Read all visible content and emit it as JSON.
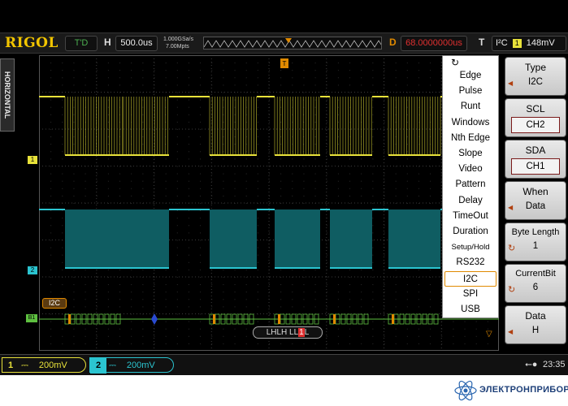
{
  "brand": "RIGOL",
  "top": {
    "status": "T'D",
    "h_label": "H",
    "timebase": "500.0us",
    "sample_rate": "1.000GSa/s",
    "memory_depth": "7.00Mpts",
    "delay_label": "D",
    "delay_value": "68.0000000us",
    "trigger_label": "T",
    "trigger_source": "I²C",
    "trigger_channel": "1",
    "trigger_level": "148mV"
  },
  "left_tab": "HORIZONTAL",
  "channel_markers": {
    "ch1": "1",
    "ch2": "2",
    "bus": "B1"
  },
  "bus_label": "I2C",
  "bus_decode": {
    "prefix": "LHLH LL",
    "highlight": "1",
    "suffix": "L"
  },
  "trigger_menu": {
    "items": [
      "Edge",
      "Pulse",
      "Runt",
      "Windows",
      "Nth Edge",
      "Slope",
      "Video",
      "Pattern",
      "Delay",
      "TimeOut",
      "Duration",
      "Setup/Hold",
      "RS232",
      "I2C",
      "SPI",
      "USB"
    ],
    "selected_index": 13
  },
  "right_panel": {
    "type": {
      "title": "Type",
      "value": "I2C"
    },
    "scl": {
      "title": "SCL",
      "value": "CH2"
    },
    "sda": {
      "title": "SDA",
      "value": "CH1"
    },
    "when": {
      "title": "When",
      "value": "Data"
    },
    "byte_length": {
      "title": "Byte Length",
      "value": "1"
    },
    "current_bit": {
      "title": "CurrentBit",
      "value": "6"
    },
    "data": {
      "title": "Data",
      "value": "H"
    }
  },
  "bottom": {
    "ch1_num": "1",
    "ch1_coupling": "⎓",
    "ch1_scale": "200mV",
    "ch2_num": "2",
    "ch2_coupling": "⎓",
    "ch2_scale": "200mV",
    "usb_icon": "usb-icon",
    "time": "23:35"
  },
  "watermark": "ЭЛЕКТРОНПРИБОР",
  "colors": {
    "ch1": "#e8e23a",
    "ch2": "#2bc4d0",
    "bus": "#5ec040",
    "accent": "#e08a00",
    "delay": "#e03030"
  }
}
